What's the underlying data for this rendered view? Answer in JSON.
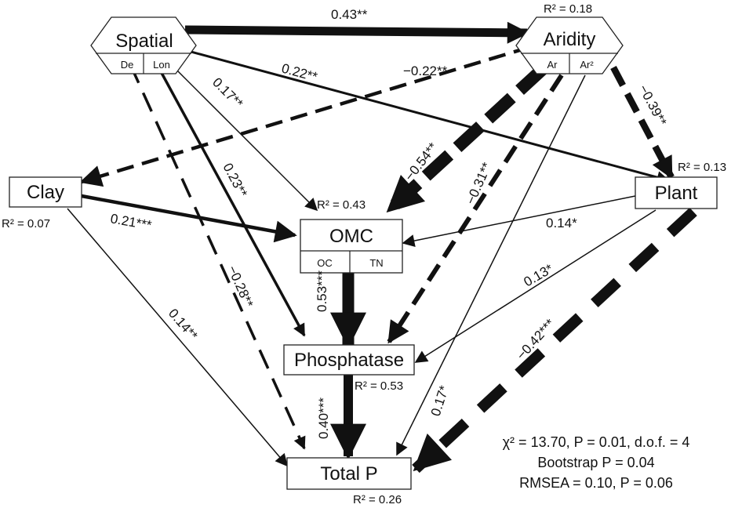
{
  "nodes": {
    "spatial": {
      "label": "Spatial",
      "sub": [
        "De",
        "Lon"
      ]
    },
    "aridity": {
      "label": "Aridity",
      "sub": [
        "Ar",
        "Ar²"
      ],
      "r2": "R² = 0.18"
    },
    "clay": {
      "label": "Clay",
      "r2": "R² = 0.07"
    },
    "plant": {
      "label": "Plant",
      "r2": "R² = 0.13"
    },
    "omc": {
      "label": "OMC",
      "sub": [
        "OC",
        "TN"
      ],
      "r2": "R² = 0.43"
    },
    "phosphatase": {
      "label": "Phosphatase",
      "r2": "R² = 0.53"
    },
    "total_p": {
      "label": "Total P",
      "r2": "R² = 0.26"
    }
  },
  "paths": [
    {
      "id": "spatial-aridity",
      "coef": "0.43**",
      "sign": "positive"
    },
    {
      "id": "spatial-plant",
      "coef": "0.22**",
      "sign": "positive"
    },
    {
      "id": "spatial-omc",
      "coef": "0.17**",
      "sign": "positive"
    },
    {
      "id": "spatial-phosphatase",
      "coef": "0.23**",
      "sign": "positive"
    },
    {
      "id": "spatial-totalp",
      "coef": "−0.28**",
      "sign": "negative"
    },
    {
      "id": "aridity-clay",
      "coef": "−0.22**",
      "sign": "negative"
    },
    {
      "id": "aridity-omc",
      "coef": "−0.54**",
      "sign": "negative"
    },
    {
      "id": "aridity-phosphatase",
      "coef": "−0.31**",
      "sign": "negative"
    },
    {
      "id": "aridity-totalp",
      "coef": "0.17*",
      "sign": "positive"
    },
    {
      "id": "aridity-plant",
      "coef": "−0.39**",
      "sign": "negative"
    },
    {
      "id": "clay-omc",
      "coef": "0.21***",
      "sign": "positive"
    },
    {
      "id": "clay-totalp",
      "coef": "0.14**",
      "sign": "positive"
    },
    {
      "id": "plant-omc",
      "coef": "0.14*",
      "sign": "positive"
    },
    {
      "id": "plant-phosphatase",
      "coef": "0.13*",
      "sign": "positive"
    },
    {
      "id": "plant-totalp",
      "coef": "−0.42***",
      "sign": "negative"
    },
    {
      "id": "omc-phosphatase",
      "coef": "0.53***",
      "sign": "positive"
    },
    {
      "id": "phosphatase-totalp",
      "coef": "0.40***",
      "sign": "positive"
    }
  ],
  "fit_stats": {
    "line1": "χ² = 13.70, P = 0.01, d.o.f. = 4",
    "line2": "Bootstrap P = 0.04",
    "line3": "RMSEA = 0.10, P = 0.06"
  },
  "colors": {
    "ink": "#111111",
    "background": "#ffffff"
  }
}
